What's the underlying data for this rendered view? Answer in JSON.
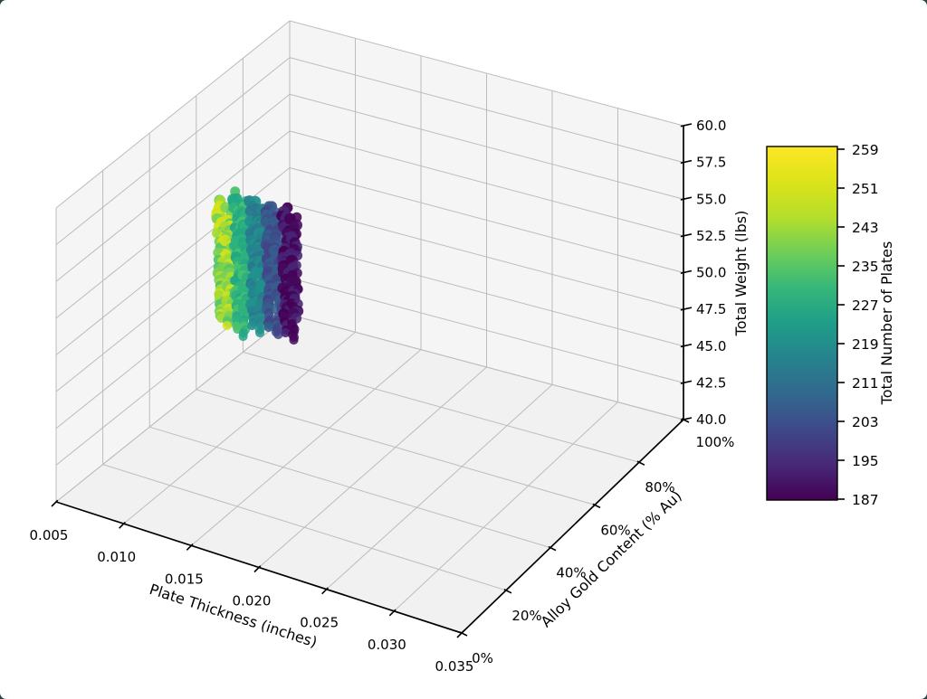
{
  "figure": {
    "title": "",
    "background": "#ffffff"
  },
  "chart_data": {
    "type": "scatter",
    "subtype": "scatter3d",
    "title": "",
    "xlabel": "Plate Thickness (inches)",
    "ylabel": "Alloy Gold Content (% Au)",
    "zlabel": "Total Weight (lbs)",
    "colorbar_label": "Total Number of Plates",
    "xticks": [
      "0.005",
      "0.010",
      "0.015",
      "0.020",
      "0.025",
      "0.030",
      "0.035"
    ],
    "yticks": [
      "0%",
      "20%",
      "40%",
      "60%",
      "80%",
      "100%"
    ],
    "zticks_bottom_to_top": [
      "40.0",
      "42.5",
      "45.0",
      "47.5",
      "50.0",
      "52.5",
      "55.0",
      "57.5",
      "60.0"
    ],
    "colorbar_ticks_top_to_bottom": [
      "259",
      "251",
      "243",
      "235",
      "227",
      "219",
      "211",
      "203",
      "195",
      "187"
    ],
    "xlim": [
      0.005,
      0.035
    ],
    "ylim_percent": [
      0,
      100
    ],
    "zlim": [
      40,
      60
    ],
    "color_range": [
      187,
      259
    ],
    "colormap": "viridis",
    "grid": true,
    "legend_position": "colorbar-right",
    "pane_color": "#f5f5f5",
    "grid_color": "#bcbcbc",
    "viridis_stops": [
      "#440154",
      "#482878",
      "#3e4989",
      "#31688e",
      "#26828e",
      "#1f9e89",
      "#35b779",
      "#6ece58",
      "#b5de2b",
      "#dce319",
      "#fde725"
    ],
    "clusters": [
      {
        "thickness_in": 0.01,
        "gold_content_pct_range": [
          55,
          75
        ],
        "weight_lbs_range": [
          46.5,
          55.5
        ],
        "plates_approx": 252,
        "shades": [
          "#d2e21b",
          "#a5db36",
          "#7ad151",
          "#54c568"
        ]
      },
      {
        "thickness_in": 0.011,
        "gold_content_pct_range": [
          55,
          75
        ],
        "weight_lbs_range": [
          46.0,
          55.5
        ],
        "plates_approx": 233,
        "shades": [
          "#4ac16d",
          "#2db27d",
          "#22a884"
        ]
      },
      {
        "thickness_in": 0.012,
        "gold_content_pct_range": [
          55,
          75
        ],
        "weight_lbs_range": [
          46.0,
          55.0
        ],
        "plates_approx": 216,
        "shades": [
          "#21918c",
          "#25848e",
          "#2a788e"
        ]
      },
      {
        "thickness_in": 0.013,
        "gold_content_pct_range": [
          55,
          75
        ],
        "weight_lbs_range": [
          45.5,
          55.0
        ],
        "plates_approx": 200,
        "shades": [
          "#355f8d",
          "#3b528b",
          "#414487"
        ]
      },
      {
        "thickness_in": 0.014,
        "gold_content_pct_range": [
          55,
          75
        ],
        "weight_lbs_range": [
          45.5,
          54.5
        ],
        "plates_approx": 190,
        "shades": [
          "#482475",
          "#46085c",
          "#440154"
        ]
      }
    ]
  }
}
